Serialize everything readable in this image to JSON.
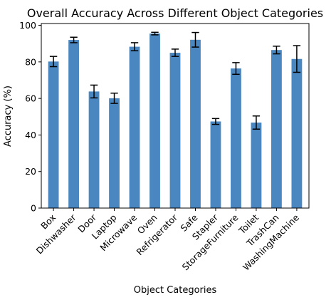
{
  "chart_data": {
    "type": "bar",
    "title": "Overall Accuracy Across Different Object Categories",
    "xlabel": "Object Categories",
    "ylabel": "Accuracy (%)",
    "ylim": [
      0,
      101
    ],
    "yticks": [
      0,
      20,
      40,
      60,
      80,
      100
    ],
    "grid": false,
    "legend": "none",
    "bar_color": "#4a86bf",
    "categories": [
      "Box",
      "Dishwasher",
      "Door",
      "Laptop",
      "Microwave",
      "Oven",
      "Refrigerator",
      "Safe",
      "Stapler",
      "StorageFurniture",
      "Toilet",
      "TrashCan",
      "WashingMachine"
    ],
    "values": [
      80.2,
      92.0,
      63.8,
      60.1,
      88.3,
      95.5,
      85.0,
      92.1,
      47.4,
      76.4,
      46.8,
      86.5,
      81.6
    ],
    "errors": [
      2.8,
      1.5,
      3.5,
      2.8,
      2.2,
      0.7,
      2.0,
      4.0,
      1.6,
      3.2,
      3.6,
      2.1,
      7.3
    ]
  }
}
